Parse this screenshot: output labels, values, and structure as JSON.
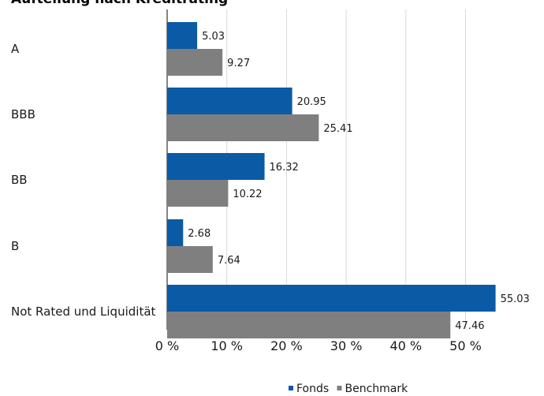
{
  "chart_data": {
    "type": "bar",
    "orientation": "horizontal",
    "title": "Aufteilung nach Kreditrating",
    "categories": [
      "A",
      "BBB",
      "BB",
      "B",
      "Not Rated und Liquidität"
    ],
    "series": [
      {
        "name": "Fonds",
        "color": "#0a5aa5",
        "values": [
          5.03,
          20.95,
          16.32,
          2.68,
          55.03
        ],
        "labels": [
          "5.03",
          "20.95",
          "16.32",
          "2.68",
          "55.03"
        ]
      },
      {
        "name": "Benchmark",
        "color": "#7f7f7f",
        "values": [
          9.27,
          25.41,
          10.22,
          7.64,
          47.46
        ],
        "labels": [
          "9.27",
          "25.41",
          "10.22",
          "7.64",
          "47.46"
        ]
      }
    ],
    "xlim": [
      0,
      60
    ],
    "ticks": [
      0,
      10,
      20,
      30,
      40,
      50
    ],
    "tick_labels": [
      "0 %",
      "10 %",
      "20 %",
      "30 %",
      "40 %",
      "50 %"
    ],
    "grid": true,
    "legend_position": "bottom"
  }
}
